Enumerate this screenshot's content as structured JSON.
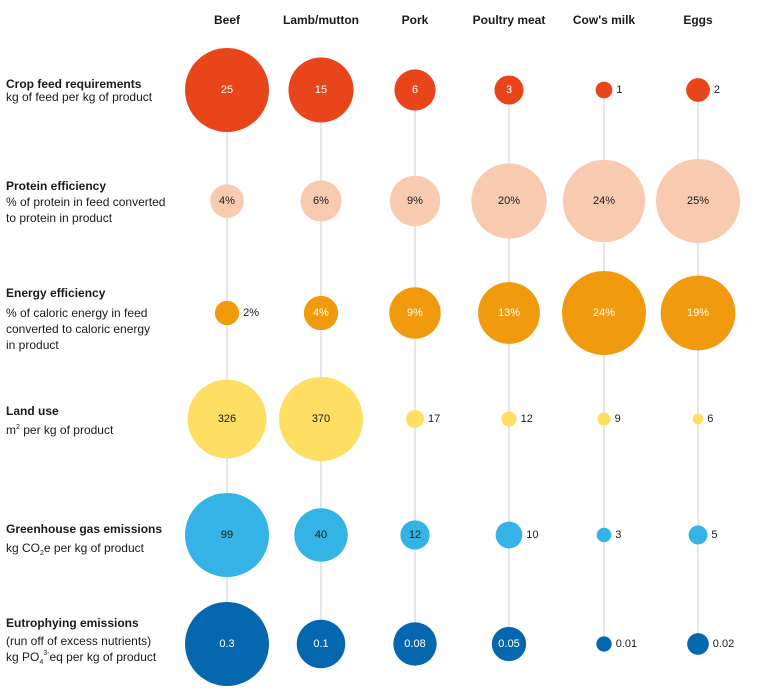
{
  "chart_data": {
    "type": "bubble-matrix",
    "columns": [
      "Beef",
      "Lamb/mutton",
      "Pork",
      "Poultry meat",
      "Cow's milk",
      "Eggs"
    ],
    "rows": [
      {
        "title": "Crop feed requirements",
        "subtitle_lines": [
          [
            "kg of feed per kg of product"
          ]
        ],
        "color": "#e8451a",
        "text_color": "#ffffff",
        "values": [
          25,
          15,
          6,
          3,
          1,
          2
        ],
        "labels": [
          "25",
          "15",
          "6",
          "3",
          "1",
          "2"
        ]
      },
      {
        "title": "Protein efficiency",
        "subtitle_lines": [
          [
            "% of protein in feed converted"
          ],
          [
            "to protein in product"
          ]
        ],
        "color": "#f8cbb0",
        "text_color": "#1a1a1a",
        "values": [
          4,
          6,
          9,
          20,
          24,
          25
        ],
        "labels": [
          "4%",
          "6%",
          "9%",
          "20%",
          "24%",
          "25%"
        ]
      },
      {
        "title": "Energy efficiency",
        "subtitle_lines": [
          [
            "% of caloric energy in feed"
          ],
          [
            "converted to caloric energy"
          ],
          [
            "in product"
          ]
        ],
        "color": "#f29a0d",
        "text_color": "#ffffff",
        "values": [
          2,
          4,
          9,
          13,
          24,
          19
        ],
        "labels": [
          "2%",
          "4%",
          "9%",
          "13%",
          "24%",
          "19%"
        ]
      },
      {
        "title": "Land use",
        "subtitle_lines": [
          [
            "m",
            "2",
            " per kg of product"
          ]
        ],
        "color": "#fedf63",
        "text_color": "#1a1a1a",
        "values": [
          326,
          370,
          17,
          12,
          9,
          6
        ],
        "labels": [
          "326",
          "370",
          "17",
          "12",
          "9",
          "6"
        ]
      },
      {
        "title": "Greenhouse gas emissions",
        "subtitle_lines": [
          [
            "kg CO",
            "2",
            "e per kg of product"
          ]
        ],
        "color": "#34b3e6",
        "text_color": "#1a1a1a",
        "values": [
          99,
          40,
          12,
          10,
          3,
          5
        ],
        "labels": [
          "99",
          "40",
          "12",
          "10",
          "3",
          "5"
        ]
      },
      {
        "title": "Eutrophying emissions",
        "subtitle_lines": [
          [
            "(run off of excess nutrients)"
          ],
          [
            "kg PO",
            "4",
            "3-",
            "eq per kg of product"
          ]
        ],
        "color": "#0568ae",
        "text_color": "#ffffff",
        "values": [
          0.3,
          0.1,
          0.08,
          0.05,
          0.01,
          0.02
        ],
        "labels": [
          "0.3",
          "0.1",
          "0.08",
          "0.05",
          "0.01",
          "0.02"
        ]
      }
    ]
  }
}
